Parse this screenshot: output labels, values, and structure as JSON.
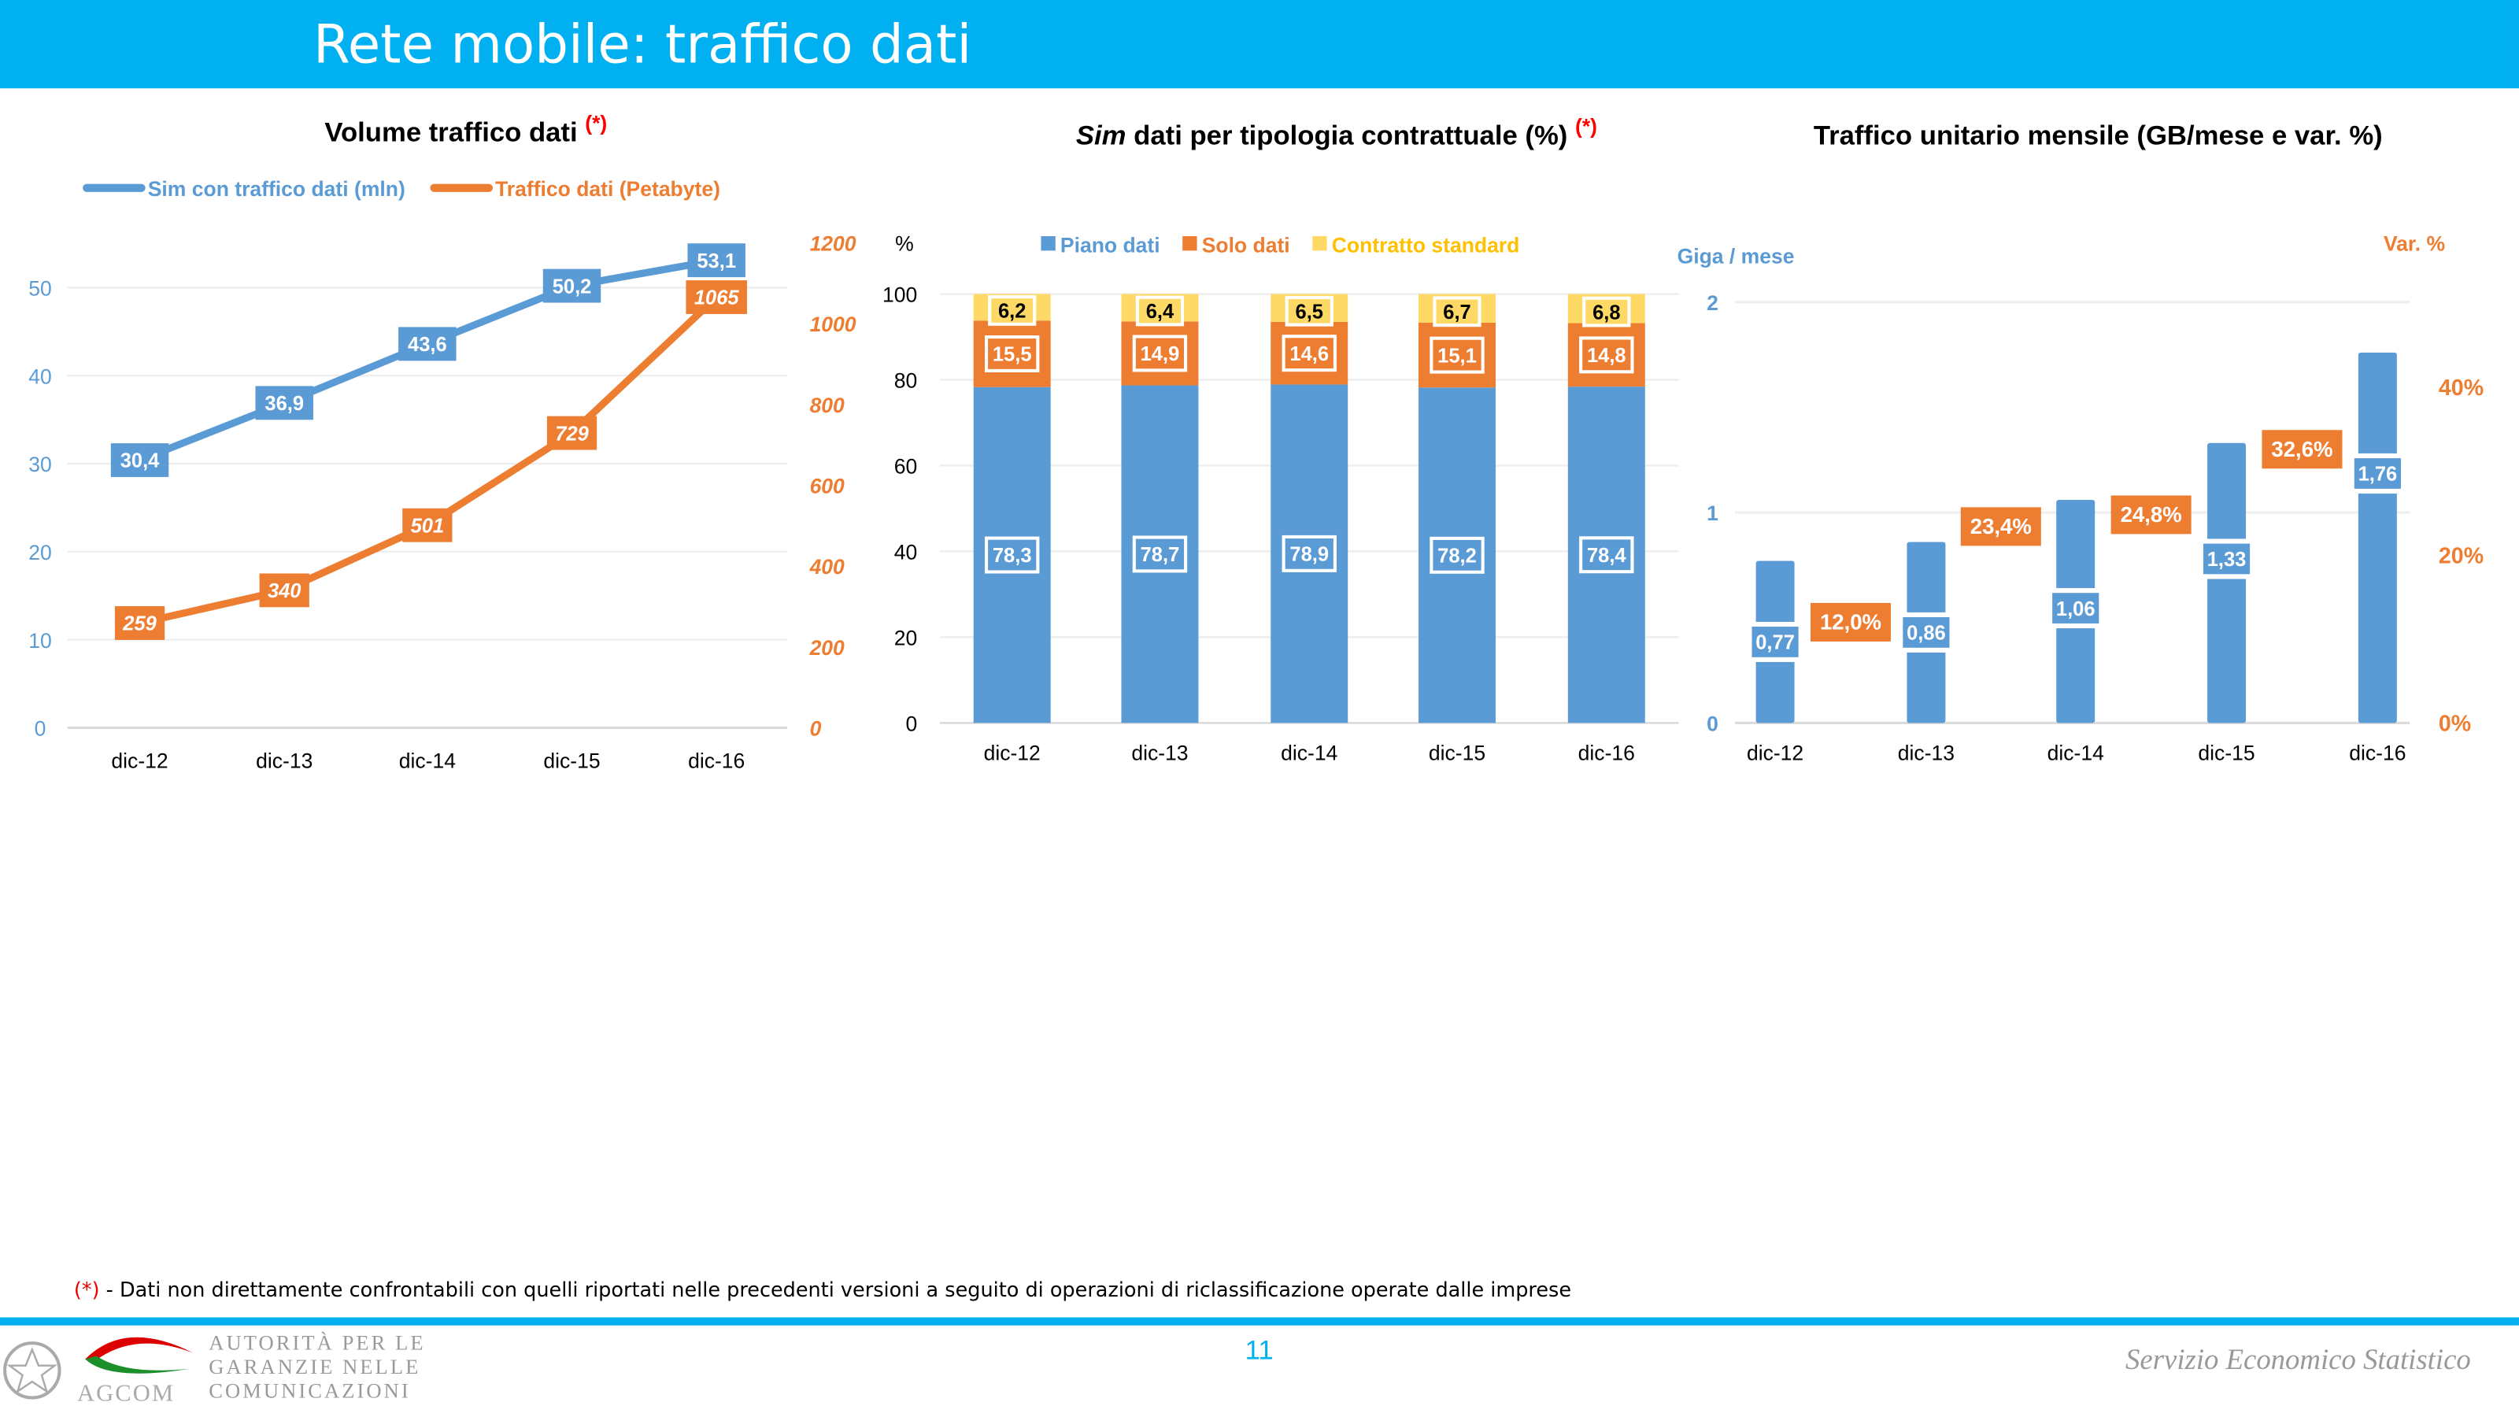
{
  "header": {
    "title": "Rete mobile: traffico dati"
  },
  "colors": {
    "blue": "#5b9bd5",
    "orange": "#ed7d31",
    "yellow": "#ffd966",
    "header": "#00b0f0",
    "red": "#ff0000"
  },
  "chart_data": [
    {
      "type": "line",
      "title": "Volume traffico dati",
      "title_mark": "(*)",
      "categories": [
        "dic-12",
        "dic-13",
        "dic-14",
        "dic-15",
        "dic-16"
      ],
      "series": [
        {
          "name": "Sim con traffico dati (mln)",
          "axis": "left",
          "values": [
            30.4,
            36.9,
            43.6,
            50.2,
            53.1
          ],
          "labels": [
            "30,4",
            "36,9",
            "43,6",
            "50,2",
            "53,1"
          ]
        },
        {
          "name": "Traffico dati (Petabyte)",
          "axis": "right",
          "values": [
            259,
            340,
            501,
            729,
            1065
          ],
          "labels": [
            "259",
            "340",
            "501",
            "729",
            "1065"
          ]
        }
      ],
      "y_left": {
        "ticks": [
          "0",
          "10",
          "20",
          "30",
          "40",
          "50"
        ],
        "range": [
          0,
          50
        ]
      },
      "y_right": {
        "ticks": [
          "0",
          "200",
          "400",
          "600",
          "800",
          "1000",
          "1200"
        ],
        "range": [
          0,
          1200
        ]
      },
      "legend": "top",
      "grid": true
    },
    {
      "type": "bar",
      "stacked": true,
      "title_italic": "Sim",
      "title": "dati per tipologia contrattuale (%)",
      "title_mark": "(*)",
      "ylabel": "%",
      "categories": [
        "dic-12",
        "dic-13",
        "dic-14",
        "dic-15",
        "dic-16"
      ],
      "series": [
        {
          "name": "Piano dati",
          "values": [
            78.3,
            78.7,
            78.9,
            78.2,
            78.4
          ],
          "labels": [
            "78,3",
            "78,7",
            "78,9",
            "78,2",
            "78,4"
          ]
        },
        {
          "name": "Solo dati",
          "values": [
            15.5,
            14.9,
            14.6,
            15.1,
            14.8
          ],
          "labels": [
            "15,5",
            "14,9",
            "14,6",
            "15,1",
            "14,8"
          ]
        },
        {
          "name": "Contratto standard",
          "values": [
            6.2,
            6.4,
            6.5,
            6.7,
            6.8
          ],
          "labels": [
            "6,2",
            "6,4",
            "6,5",
            "6,7",
            "6,8"
          ]
        }
      ],
      "y_ticks": [
        "0",
        "20",
        "40",
        "60",
        "80",
        "100"
      ],
      "ylim": [
        0,
        100
      ],
      "legend": "top",
      "grid": true
    },
    {
      "type": "bar",
      "title": "Traffico unitario mensile (GB/mese e var. %)",
      "ylabel": "Giga / mese",
      "y2label": "Var. %",
      "categories": [
        "dic-12",
        "dic-13",
        "dic-14",
        "dic-15",
        "dic-16"
      ],
      "bars": {
        "values": [
          0.77,
          0.86,
          1.06,
          1.33,
          1.76
        ],
        "labels": [
          "0,77",
          "0,86",
          "1,06",
          "1,33",
          "1,76"
        ]
      },
      "variation": {
        "values": [
          12.0,
          23.4,
          24.8,
          32.6
        ],
        "labels": [
          "12,0%",
          "23,4%",
          "24,8%",
          "32,6%"
        ]
      },
      "y_left": {
        "ticks": [
          "0",
          "1",
          "2"
        ],
        "range": [
          0,
          2
        ]
      },
      "y_right": {
        "ticks": [
          "0%",
          "20%",
          "40%"
        ],
        "range": [
          0,
          40
        ]
      },
      "grid": true
    }
  ],
  "footer": {
    "note_mark": "(*)",
    "note": " - Dati non direttamente confrontabili con quelli riportati nelle precedenti versioni a seguito di operazioni di riclassificazione operate dalle imprese",
    "page_number": "11",
    "logo_text": "AUTORITÀ PER LE GARANZIE NELLE COMUNICAZIONI",
    "logo_short": "AGCOM",
    "service": "Servizio Economico Statistico"
  }
}
